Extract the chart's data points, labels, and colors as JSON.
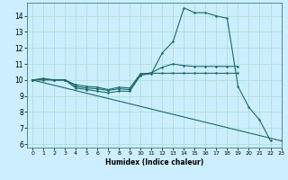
{
  "xlabel": "Humidex (Indice chaleur)",
  "bg_color": "#cceeff",
  "line_color": "#1a6b6b",
  "grid_color": "#aaddcc",
  "xlim": [
    -0.5,
    23
  ],
  "ylim": [
    5.8,
    14.8
  ],
  "yticks": [
    6,
    7,
    8,
    9,
    10,
    11,
    12,
    13,
    14
  ],
  "xticks": [
    0,
    1,
    2,
    3,
    4,
    5,
    6,
    7,
    8,
    9,
    10,
    11,
    12,
    13,
    14,
    15,
    16,
    17,
    18,
    19,
    20,
    21,
    22,
    23
  ],
  "line1_x": [
    0,
    1,
    2,
    3,
    4,
    5,
    6,
    7,
    8,
    9,
    10,
    11,
    12,
    13,
    14,
    15,
    16,
    17,
    18,
    19,
    20,
    21,
    22
  ],
  "line1_y": [
    10.0,
    10.1,
    10.0,
    10.0,
    9.5,
    9.4,
    9.3,
    9.2,
    9.3,
    9.3,
    10.3,
    10.4,
    11.7,
    12.4,
    14.5,
    14.2,
    14.2,
    14.0,
    13.85,
    9.6,
    8.3,
    7.5,
    6.2
  ],
  "line2_x": [
    0,
    1,
    2,
    3,
    4,
    5,
    6,
    7,
    8,
    9,
    10,
    11,
    12,
    13,
    14,
    15,
    16,
    17,
    18,
    19
  ],
  "line2_y": [
    10.0,
    10.05,
    10.0,
    10.0,
    9.6,
    9.5,
    9.45,
    9.35,
    9.45,
    9.4,
    10.35,
    10.45,
    10.8,
    11.0,
    10.9,
    10.85,
    10.85,
    10.85,
    10.85,
    10.85
  ],
  "line3_x": [
    0,
    1,
    2,
    3,
    4,
    5,
    6,
    7,
    8,
    9,
    10,
    11,
    12,
    13,
    14,
    15,
    16,
    17,
    18,
    19
  ],
  "line3_y": [
    10.0,
    10.0,
    10.0,
    10.0,
    9.7,
    9.6,
    9.55,
    9.4,
    9.55,
    9.5,
    10.4,
    10.42,
    10.42,
    10.42,
    10.42,
    10.42,
    10.42,
    10.42,
    10.42,
    10.42
  ],
  "line4_x": [
    0,
    23
  ],
  "line4_y": [
    10.0,
    6.2
  ]
}
